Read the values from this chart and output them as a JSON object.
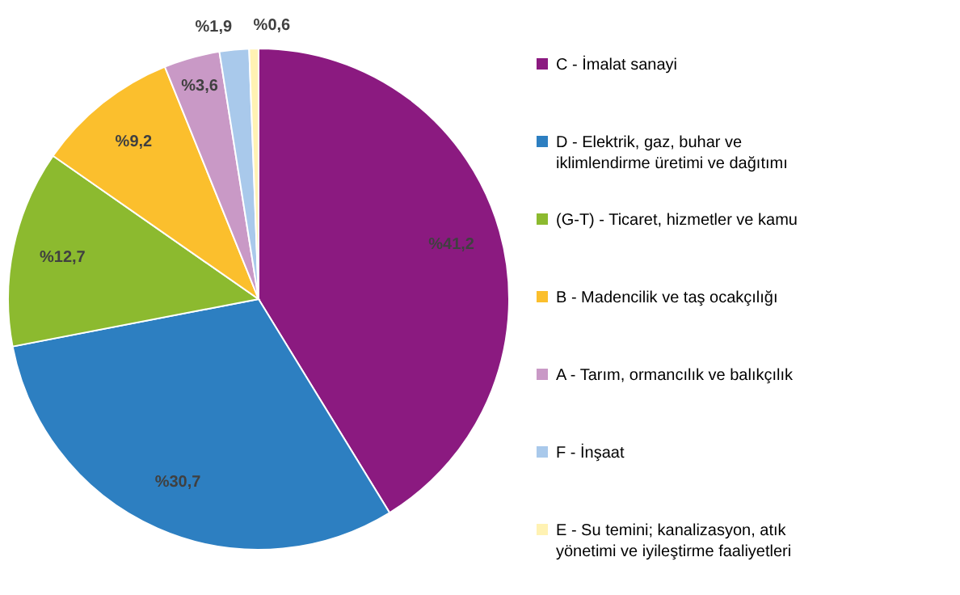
{
  "chart_data": {
    "type": "pie",
    "categories": [
      "C - İmalat sanayi",
      "D - Elektrik, gaz, buhar ve iklimlendirme üretimi ve dağıtımı",
      "(G-T) - Ticaret, hizmetler ve kamu",
      "B - Madencilik ve taş ocakçılığı",
      "A - Tarım, ormancılık ve balıkçılık",
      "F - İnşaat",
      "E - Su temini; kanalizasyon, atık yönetimi ve iyileştirme faaliyetleri"
    ],
    "values": [
      41.2,
      30.7,
      12.7,
      9.2,
      3.6,
      1.9,
      0.6
    ],
    "colors": [
      "#8b1a80",
      "#2d7fc1",
      "#8cba2f",
      "#fbbf2d",
      "#c999c6",
      "#a9c9eb",
      "#fff2b3"
    ],
    "value_labels": [
      "%41,2",
      "%30,7",
      "%12,7",
      "%9,2",
      "%3,6",
      "%1,9",
      "%0,6"
    ],
    "legend": "right"
  }
}
